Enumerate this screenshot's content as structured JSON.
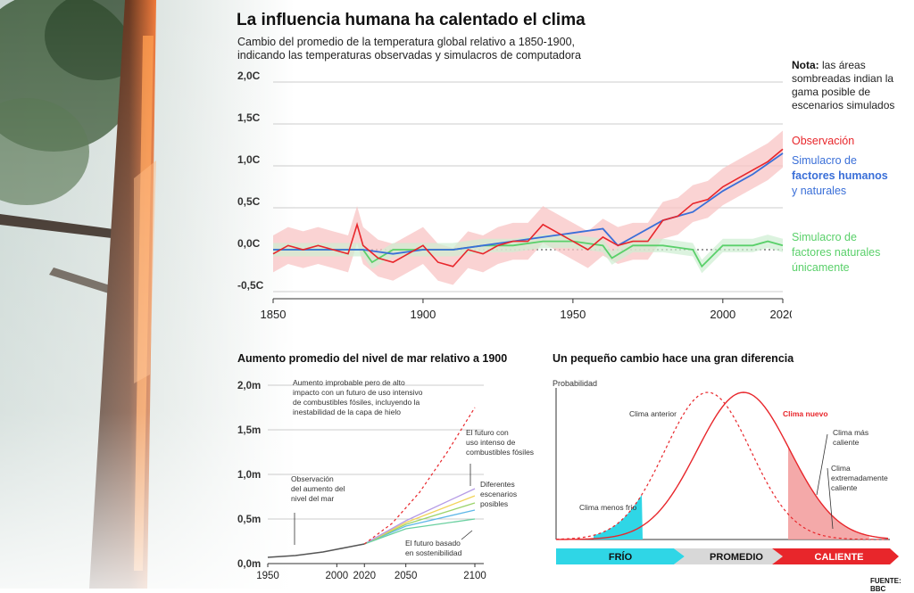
{
  "header": {
    "title": "La influencia humana ha calentado el clima",
    "subtitle": "Cambio del promedio de la temperatura global relativo a 1850-1900, indicando las temperaturas observadas y simulacros de computadora"
  },
  "note": {
    "bold": "Nota:",
    "text": "las áreas sombreadas indian la gama posible de escenarios simulados"
  },
  "legend": {
    "observation": "Observación",
    "human_line1": "Simulacro de",
    "human_line2": "factores humanos",
    "human_line3": "y naturales",
    "natural_line1": "Simulacro de",
    "natural_line2": "factores naturales",
    "natural_line3": "únicamente"
  },
  "colors": {
    "observation": "#e8262b",
    "human": "#3a6fd8",
    "natural": "#5ad06a",
    "band": "#f8c4c4"
  },
  "sea_title": "Aumento promedio del nivel de mar relativo a 1900",
  "dist_title": "Un pequeño cambio hace una gran diferencia",
  "source": "FUENTE: BBC",
  "chart_data": [
    {
      "type": "line",
      "y_ticks": [
        "2,0C",
        "1,5C",
        "1,0C",
        "0,5C",
        "0,0C",
        "-0,5C"
      ],
      "y_tick_values": [
        2.0,
        1.5,
        1.0,
        0.5,
        0.0,
        -0.5
      ],
      "x_ticks": [
        "1850",
        "1900",
        "1950",
        "2000",
        "2020"
      ],
      "x_tick_values": [
        1850,
        1900,
        1950,
        2000,
        2020
      ],
      "xlim": [
        1850,
        2020
      ],
      "ylim": [
        -0.5,
        2.0
      ],
      "series": [
        {
          "name": "Observación",
          "x": [
            1850,
            1855,
            1860,
            1865,
            1870,
            1875,
            1878,
            1880,
            1885,
            1890,
            1895,
            1900,
            1905,
            1910,
            1915,
            1920,
            1925,
            1930,
            1935,
            1940,
            1945,
            1950,
            1955,
            1960,
            1965,
            1970,
            1975,
            1980,
            1985,
            1990,
            1995,
            2000,
            2005,
            2010,
            2015,
            2020
          ],
          "values": [
            -0.05,
            0.05,
            0.0,
            0.05,
            0.0,
            -0.05,
            0.3,
            0.05,
            -0.1,
            -0.15,
            -0.05,
            0.05,
            -0.15,
            -0.2,
            0.0,
            -0.05,
            0.05,
            0.1,
            0.1,
            0.3,
            0.2,
            0.1,
            0.0,
            0.15,
            0.05,
            0.1,
            0.1,
            0.35,
            0.4,
            0.55,
            0.6,
            0.75,
            0.85,
            0.95,
            1.05,
            1.2
          ]
        },
        {
          "name": "Simulacro de factores humanos y naturales",
          "x": [
            1850,
            1860,
            1870,
            1880,
            1890,
            1900,
            1910,
            1920,
            1930,
            1940,
            1950,
            1960,
            1965,
            1970,
            1980,
            1990,
            2000,
            2010,
            2020
          ],
          "values": [
            0.0,
            0.0,
            0.0,
            0.0,
            -0.05,
            0.0,
            0.0,
            0.05,
            0.1,
            0.15,
            0.2,
            0.25,
            0.05,
            0.15,
            0.35,
            0.45,
            0.7,
            0.9,
            1.15
          ]
        },
        {
          "name": "Simulacro de factores naturales únicamente",
          "x": [
            1850,
            1860,
            1870,
            1880,
            1883,
            1890,
            1900,
            1910,
            1920,
            1930,
            1940,
            1950,
            1960,
            1963,
            1970,
            1980,
            1990,
            1993,
            2000,
            2010,
            2015,
            2020
          ],
          "values": [
            0.0,
            0.0,
            0.0,
            0.0,
            -0.15,
            0.0,
            0.0,
            0.0,
            0.05,
            0.05,
            0.1,
            0.1,
            0.05,
            -0.1,
            0.05,
            0.05,
            0.0,
            -0.2,
            0.05,
            0.05,
            0.1,
            0.05
          ]
        }
      ]
    },
    {
      "type": "line",
      "y_ticks": [
        "2,0m",
        "1,5m",
        "1,0m",
        "0,5m",
        "0,0m"
      ],
      "y_tick_values": [
        2.0,
        1.5,
        1.0,
        0.5,
        0.0
      ],
      "x_ticks": [
        "1950",
        "2000",
        "2020",
        "2050",
        "2100"
      ],
      "x_tick_values": [
        1950,
        2000,
        2020,
        2050,
        2100
      ],
      "xlim": [
        1950,
        2100
      ],
      "ylim": [
        0,
        2.0
      ],
      "observed": {
        "x": [
          1950,
          1960,
          1970,
          1980,
          1990,
          2000,
          2010,
          2020
        ],
        "values": [
          0.07,
          0.08,
          0.09,
          0.11,
          0.13,
          0.16,
          0.19,
          0.22
        ]
      },
      "scenarios": [
        {
          "x": [
            2020,
            2050,
            2100
          ],
          "values": [
            0.22,
            0.42,
            0.6
          ]
        },
        {
          "x": [
            2020,
            2050,
            2100
          ],
          "values": [
            0.22,
            0.44,
            0.68
          ]
        },
        {
          "x": [
            2020,
            2050,
            2100
          ],
          "values": [
            0.22,
            0.46,
            0.76
          ]
        },
        {
          "x": [
            2020,
            2050,
            2100
          ],
          "values": [
            0.22,
            0.48,
            0.84
          ]
        },
        {
          "x": [
            2020,
            2050,
            2100
          ],
          "values": [
            0.22,
            0.39,
            0.5
          ]
        }
      ],
      "high_impact": {
        "x": [
          2020,
          2040,
          2060,
          2080,
          2100
        ],
        "values": [
          0.22,
          0.45,
          0.8,
          1.25,
          1.75
        ]
      },
      "annotations": {
        "high": [
          "Aumento improbable pero de alto",
          "impacto con un futuro de uso intensivo",
          "de combustibles fósiles, incluyendo la",
          "inestabilidad de la capa de hielo"
        ],
        "intense": [
          "El futuro con",
          "uso intenso de",
          "combustibles fósiles"
        ],
        "scenarios": [
          "Diferentes",
          "escenarios",
          "posibles"
        ],
        "observed": [
          "Observación",
          "del aumento del",
          "nivel del mar"
        ],
        "sustain": [
          "El futuro basado",
          "en sostenibilidad"
        ]
      }
    },
    {
      "type": "area",
      "ylabel": "Probabilidad",
      "labels": {
        "old_climate": "Clima anterior",
        "new_climate": "Clima nuevo",
        "less_cold": "Clima menos frío",
        "hotter_1": "Clima más",
        "hotter_2": "caliente",
        "extreme_1": "Clima",
        "extreme_2": "extremadamente",
        "extreme_3": "caliente"
      },
      "bar": {
        "cold": "FRÍO",
        "avg": "PROMEDIO",
        "hot": "CALIENTE"
      }
    }
  ]
}
